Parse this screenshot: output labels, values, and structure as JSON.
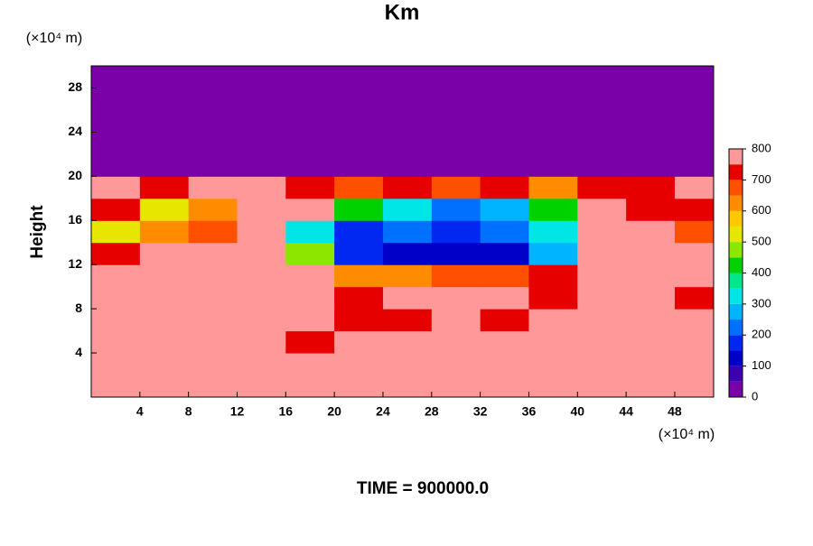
{
  "chart_data": {
    "type": "heatmap",
    "title": "Km",
    "y_unit": "(×10⁴ m)",
    "x_unit": "(×10⁴ m)",
    "ylabel": "Height",
    "footer": "TIME = 900000.0",
    "xlim": [
      0,
      51.2
    ],
    "ylim": [
      0,
      30
    ],
    "xticks": [
      4,
      8,
      12,
      16,
      20,
      24,
      28,
      32,
      36,
      40,
      44,
      48
    ],
    "yticks": [
      4,
      8,
      12,
      16,
      20,
      24,
      28
    ],
    "x": [
      2,
      6,
      10,
      14,
      18,
      22,
      26,
      30,
      34,
      38,
      42,
      46,
      50
    ],
    "y": [
      1,
      3,
      5,
      7,
      9,
      11,
      13,
      15,
      17,
      19,
      21,
      23,
      25,
      27,
      29
    ],
    "z": [
      [
        800,
        800,
        800,
        800,
        800,
        800,
        800,
        800,
        800,
        800,
        800,
        800,
        800
      ],
      [
        800,
        800,
        800,
        800,
        750,
        800,
        800,
        800,
        800,
        800,
        800,
        800,
        800
      ],
      [
        800,
        800,
        800,
        800,
        700,
        750,
        800,
        800,
        800,
        800,
        800,
        800,
        800
      ],
      [
        800,
        800,
        800,
        800,
        750,
        700,
        700,
        800,
        700,
        750,
        800,
        800,
        750
      ],
      [
        800,
        800,
        800,
        800,
        800,
        700,
        750,
        800,
        750,
        700,
        800,
        800,
        700
      ],
      [
        800,
        800,
        800,
        800,
        800,
        600,
        600,
        650,
        650,
        700,
        800,
        750,
        800
      ],
      [
        700,
        750,
        800,
        800,
        450,
        150,
        100,
        100,
        100,
        250,
        800,
        800,
        750
      ],
      [
        500,
        600,
        650,
        800,
        300,
        150,
        200,
        150,
        200,
        300,
        800,
        750,
        650
      ],
      [
        700,
        500,
        600,
        800,
        750,
        400,
        300,
        200,
        250,
        400,
        750,
        700,
        700
      ],
      [
        750,
        700,
        750,
        800,
        700,
        650,
        700,
        650,
        700,
        600,
        700,
        700,
        750
      ],
      [
        0,
        0,
        0,
        0,
        0,
        0,
        0,
        0,
        0,
        0,
        0,
        0,
        0
      ],
      [
        0,
        0,
        0,
        0,
        0,
        0,
        0,
        0,
        0,
        0,
        0,
        0,
        0
      ],
      [
        0,
        0,
        0,
        0,
        0,
        0,
        0,
        0,
        0,
        0,
        0,
        0,
        0
      ],
      [
        0,
        0,
        0,
        0,
        0,
        0,
        0,
        0,
        0,
        0,
        0,
        0,
        0
      ],
      [
        0,
        0,
        0,
        0,
        0,
        0,
        0,
        0,
        0,
        0,
        0,
        0,
        0
      ]
    ],
    "levels": [
      0,
      50,
      100,
      150,
      200,
      250,
      300,
      350,
      400,
      450,
      500,
      550,
      600,
      650,
      700,
      750,
      800
    ],
    "colors": [
      "#7a00a8",
      "#3c00b0",
      "#0000c8",
      "#0028f0",
      "#0070ff",
      "#00b4ff",
      "#00e6e6",
      "#00e68c",
      "#00d200",
      "#8ce600",
      "#e6e600",
      "#ffc800",
      "#ff8c00",
      "#ff5000",
      "#e60000",
      "#ff9999"
    ],
    "colorbar_ticks": [
      0,
      100,
      200,
      300,
      400,
      500,
      600,
      700,
      800
    ]
  }
}
